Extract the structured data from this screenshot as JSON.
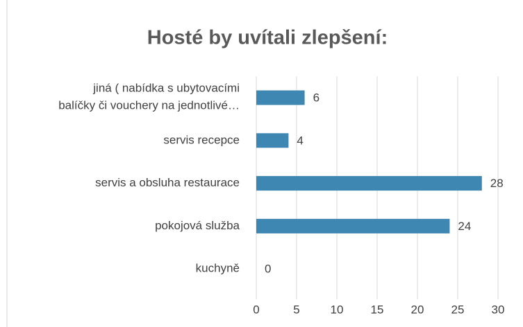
{
  "chart_data": {
    "type": "bar",
    "orientation": "horizontal",
    "title": "Hosté by uvítali zlepšení:",
    "categories": [
      "jiná ( nabídka s ubytovacími\nbalíčky či vouchery na jednotlivé…",
      "servis recepce",
      "servis a obsluha restaurace",
      "pokojová služba",
      "kuchyně"
    ],
    "values": [
      6,
      4,
      28,
      24,
      0
    ],
    "color": "#3e87b3",
    "xlim": [
      0,
      30
    ],
    "xticks": [
      0,
      5,
      10,
      15,
      20,
      25,
      30
    ],
    "grid": true
  }
}
